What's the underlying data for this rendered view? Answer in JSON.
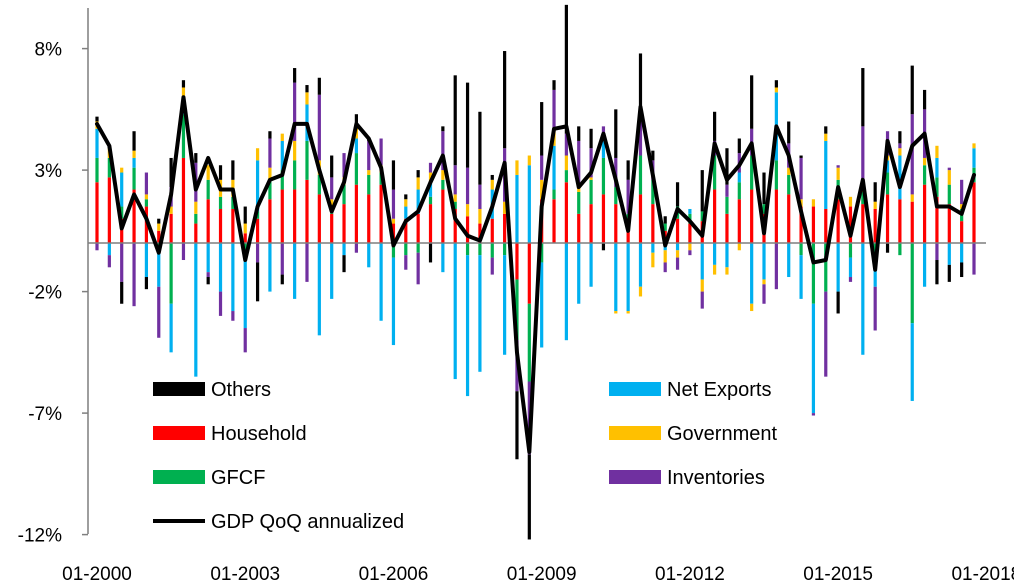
{
  "chart_data": {
    "type": "bar",
    "stacked": true,
    "title": "",
    "xlabel": "",
    "ylabel": "",
    "ylim": [
      -12,
      10
    ],
    "y_ticks": [
      8,
      3,
      -2,
      -7,
      -12
    ],
    "y_tick_labels": [
      "8%",
      "3%",
      "-2%",
      "-7%",
      "-12%"
    ],
    "x_tick_labels": [
      "01-2000",
      "01-2003",
      "01-2006",
      "01-2009",
      "01-2012",
      "01-2015",
      "01-2018"
    ],
    "period_start": "01-2000",
    "colors": {
      "Others": "#000000",
      "Household": "#ff0000",
      "GFCF": "#00b050",
      "Net Exports": "#00b0f0",
      "Government": "#ffc000",
      "Inventories": "#7030a0",
      "GDP QoQ annualized": "#000000"
    },
    "legend": [
      "Others",
      "Household",
      "GFCF",
      "GDP QoQ annualized",
      "Net Exports",
      "Government",
      "Inventories"
    ],
    "gdp": [
      4.9,
      4.0,
      0.6,
      2.0,
      1.0,
      -0.4,
      2.0,
      6.0,
      2.2,
      3.5,
      2.2,
      2.2,
      -0.7,
      1.5,
      2.6,
      2.8,
      4.9,
      4.9,
      3.0,
      1.3,
      2.5,
      4.9,
      4.3,
      3.1,
      -0.1,
      0.9,
      1.3,
      2.5,
      3.6,
      1.0,
      0.3,
      0.1,
      1.5,
      3.3,
      -4.5,
      -8.6,
      1.5,
      4.7,
      4.8,
      2.3,
      2.9,
      4.5,
      2.6,
      0.5,
      5.6,
      2.8,
      -0.1,
      1.4,
      0.9,
      0.3,
      4.1,
      2.6,
      3.2,
      4.1,
      0.4,
      4.8,
      3.6,
      1.3,
      -0.8,
      -0.7,
      2.3,
      0.3,
      2.6,
      -1.1,
      4.2,
      2.3,
      4.0,
      4.5,
      1.5,
      1.5,
      1.2,
      2.8
    ],
    "series": [
      {
        "name": "Household",
        "values": [
          2.5,
          2.7,
          1.0,
          2.2,
          1.5,
          0.5,
          1.2,
          3.5,
          0.8,
          1.8,
          1.4,
          1.4,
          0.4,
          1.0,
          1.8,
          2.2,
          2.2,
          2.6,
          2.0,
          1.2,
          1.6,
          2.4,
          2.0,
          2.4,
          0.8,
          1.0,
          1.2,
          1.6,
          2.2,
          1.4,
          1.1,
          0.8,
          1.0,
          1.2,
          -1.5,
          -2.5,
          1.8,
          1.8,
          2.5,
          1.2,
          1.6,
          2.0,
          1.6,
          1.0,
          2.0,
          1.6,
          0.5,
          1.0,
          0.8,
          0.9,
          2.2,
          1.2,
          1.8,
          2.2,
          1.2,
          2.2,
          2.0,
          1.5,
          1.5,
          1.4,
          1.8,
          1.5,
          1.6,
          1.4,
          2.0,
          1.8,
          1.7,
          2.4,
          1.9,
          1.6,
          0.9,
          2.5
        ]
      },
      {
        "name": "GFCF",
        "values": [
          1.0,
          0.8,
          0.5,
          0.9,
          0.3,
          -0.4,
          -2.5,
          1.8,
          0.4,
          0.8,
          0.5,
          0.5,
          -0.3,
          0.3,
          0.8,
          0.8,
          1.2,
          1.6,
          0.8,
          0.2,
          0.8,
          1.3,
          0.8,
          0.5,
          -0.6,
          -0.5,
          -0.4,
          0.3,
          0.4,
          0.3,
          -0.5,
          -0.5,
          -0.6,
          -0.5,
          -2.5,
          -3.2,
          -0.8,
          0.4,
          0.5,
          0.9,
          1.0,
          1.5,
          0.7,
          0.2,
          1.6,
          1.0,
          0.3,
          0.5,
          0.4,
          0.4,
          1.4,
          0.7,
          0.7,
          1.4,
          0.4,
          1.2,
          0.8,
          -0.5,
          -2.5,
          -2.0,
          0.8,
          -0.6,
          0.5,
          -1.0,
          0.9,
          -0.5,
          -3.3,
          0.8,
          0.8,
          0.8,
          0.5,
          0.6
        ]
      },
      {
        "name": "Net Exports",
        "values": [
          1.2,
          -0.5,
          1.4,
          0.4,
          -1.4,
          -1.4,
          -2.0,
          0.5,
          -5.5,
          -1.2,
          -2.0,
          -2.8,
          -3.2,
          2.1,
          -2.0,
          1.2,
          -2.3,
          1.5,
          -3.8,
          -2.3,
          -0.5,
          0.6,
          -1.0,
          -3.2,
          -3.6,
          0.5,
          1.0,
          0.6,
          -1.2,
          -5.6,
          -5.8,
          -4.8,
          1.2,
          -4.1,
          2.8,
          3.2,
          -3.5,
          1.8,
          -4.0,
          -2.5,
          -1.8,
          0.9,
          -2.8,
          -2.8,
          -1.8,
          -0.4,
          -0.3,
          -0.3,
          0.2,
          -1.5,
          -0.9,
          -1.0,
          0.4,
          -2.5,
          -1.5,
          2.8,
          -1.4,
          -1.8,
          -4.5,
          2.8,
          -2.0,
          -0.8,
          -4.6,
          -0.8,
          0.5,
          1.8,
          -3.2,
          -1.8,
          0.8,
          -0.9,
          -0.8,
          0.8
        ]
      },
      {
        "name": "Government",
        "values": [
          0.3,
          0.4,
          0.2,
          0.3,
          0.2,
          0.3,
          0.3,
          0.6,
          0.5,
          0.6,
          0.7,
          0.7,
          0.4,
          0.5,
          0.5,
          0.3,
          0.8,
          0.5,
          0.6,
          0.4,
          0.3,
          0.5,
          0.2,
          0.3,
          0.2,
          0.3,
          0.5,
          0.4,
          0.4,
          0.3,
          0.5,
          0.6,
          0.4,
          0.5,
          0.6,
          0.4,
          0.8,
          0.7,
          0.6,
          0.3,
          0.1,
          0.0,
          -0.1,
          -0.1,
          -0.4,
          -0.6,
          -0.5,
          -0.3,
          -0.3,
          -0.5,
          -0.4,
          -0.3,
          -0.3,
          -0.3,
          -0.2,
          0.2,
          0.3,
          0.3,
          0.3,
          0.3,
          0.5,
          0.4,
          0.3,
          0.3,
          0.2,
          0.3,
          0.3,
          0.3,
          0.5,
          0.6,
          0.2,
          0.2
        ]
      },
      {
        "name": "Inventories",
        "values": [
          -0.3,
          -0.5,
          -1.6,
          -2.6,
          0.9,
          -2.1,
          0.8,
          -0.7,
          1.6,
          -0.2,
          -1.0,
          -0.4,
          -1.0,
          -0.8,
          1.2,
          -1.3,
          2.4,
          -1.6,
          2.7,
          0.9,
          1.0,
          -0.4,
          1.2,
          1.1,
          1.2,
          -0.6,
          -1.3,
          0.4,
          1.6,
          1.2,
          1.5,
          1.0,
          -0.7,
          2.2,
          -2.1,
          -3.0,
          1.0,
          1.6,
          0.9,
          1.8,
          1.2,
          0.4,
          1.2,
          1.4,
          1.8,
          0.8,
          -0.4,
          -0.5,
          -0.2,
          -0.7,
          0.6,
          0.5,
          0.8,
          1.1,
          -0.8,
          -1.9,
          1.0,
          1.7,
          -0.1,
          -3.5,
          0.1,
          -0.2,
          2.4,
          -1.8,
          1.0,
          0.2,
          3.3,
          2.0,
          -0.7,
          0.1,
          1.0,
          -1.3
        ]
      },
      {
        "name": "Others",
        "values": [
          0.2,
          0.1,
          -0.9,
          0.8,
          -0.5,
          0.2,
          1.2,
          0.3,
          0.4,
          -0.3,
          0.6,
          0.8,
          0.7,
          -1.6,
          0.3,
          -0.4,
          0.6,
          0.3,
          0.7,
          0.9,
          -0.7,
          0.5,
          0.1,
          0.0,
          1.2,
          0.2,
          0.3,
          -0.8,
          0.2,
          3.7,
          3.5,
          3.0,
          0.2,
          4.0,
          -2.8,
          -3.5,
          2.2,
          0.4,
          5.3,
          0.6,
          0.8,
          -0.3,
          2.0,
          0.8,
          2.4,
          0.4,
          0.3,
          1.0,
          0.0,
          1.7,
          1.2,
          1.5,
          0.6,
          2.2,
          1.3,
          0.3,
          0.9,
          0.1,
          0.0,
          0.3,
          -0.9,
          -0.0,
          2.4,
          0.8,
          -0.4,
          0.5,
          2.0,
          0.8,
          -1.0,
          -0.7,
          -0.6,
          0.0
        ]
      }
    ]
  }
}
